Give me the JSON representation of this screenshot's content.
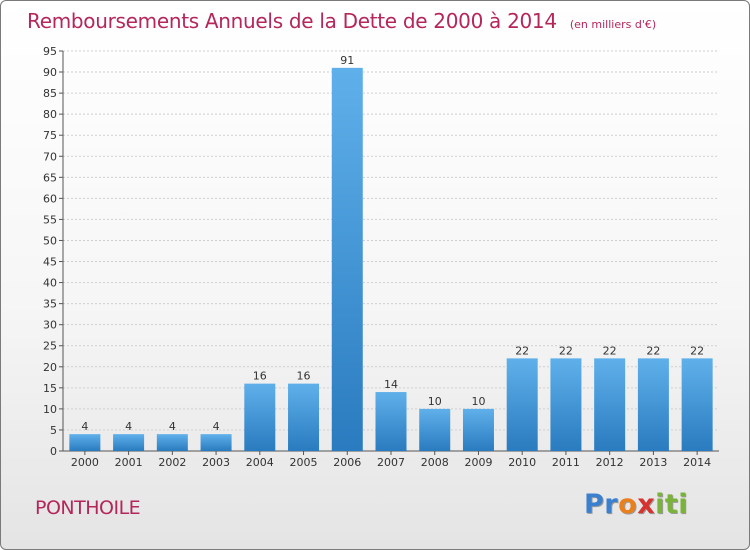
{
  "chart_data": {
    "type": "bar",
    "title": "Remboursements Annuels de la Dette de 2000 à 2014",
    "subtitle": "(en milliers d'€)",
    "xlabel": "",
    "ylabel": "",
    "categories": [
      "2000",
      "2001",
      "2002",
      "2003",
      "2004",
      "2005",
      "2006",
      "2007",
      "2008",
      "2009",
      "2010",
      "2011",
      "2012",
      "2013",
      "2014"
    ],
    "values": [
      4,
      4,
      4,
      4,
      16,
      16,
      91,
      14,
      10,
      10,
      22,
      22,
      22,
      22,
      22
    ],
    "ylim": [
      0,
      95
    ],
    "yticks": [
      0,
      5,
      10,
      15,
      20,
      25,
      30,
      35,
      40,
      45,
      50,
      55,
      60,
      65,
      70,
      75,
      80,
      85,
      90,
      95
    ],
    "grid": true,
    "legend": "none",
    "bar_color": "#3a8fd6"
  },
  "footer": {
    "location": "PONTHOILE",
    "logo_letters": [
      "P",
      "r",
      "o",
      "x",
      "i",
      "t",
      "i"
    ]
  },
  "colors": {
    "title": "#b5265a",
    "logo": [
      "#3b7fcf",
      "#3b7fcf",
      "#e8801e",
      "#d6322e",
      "#7ab33a",
      "#7ab33a",
      "#7ab33a"
    ]
  }
}
